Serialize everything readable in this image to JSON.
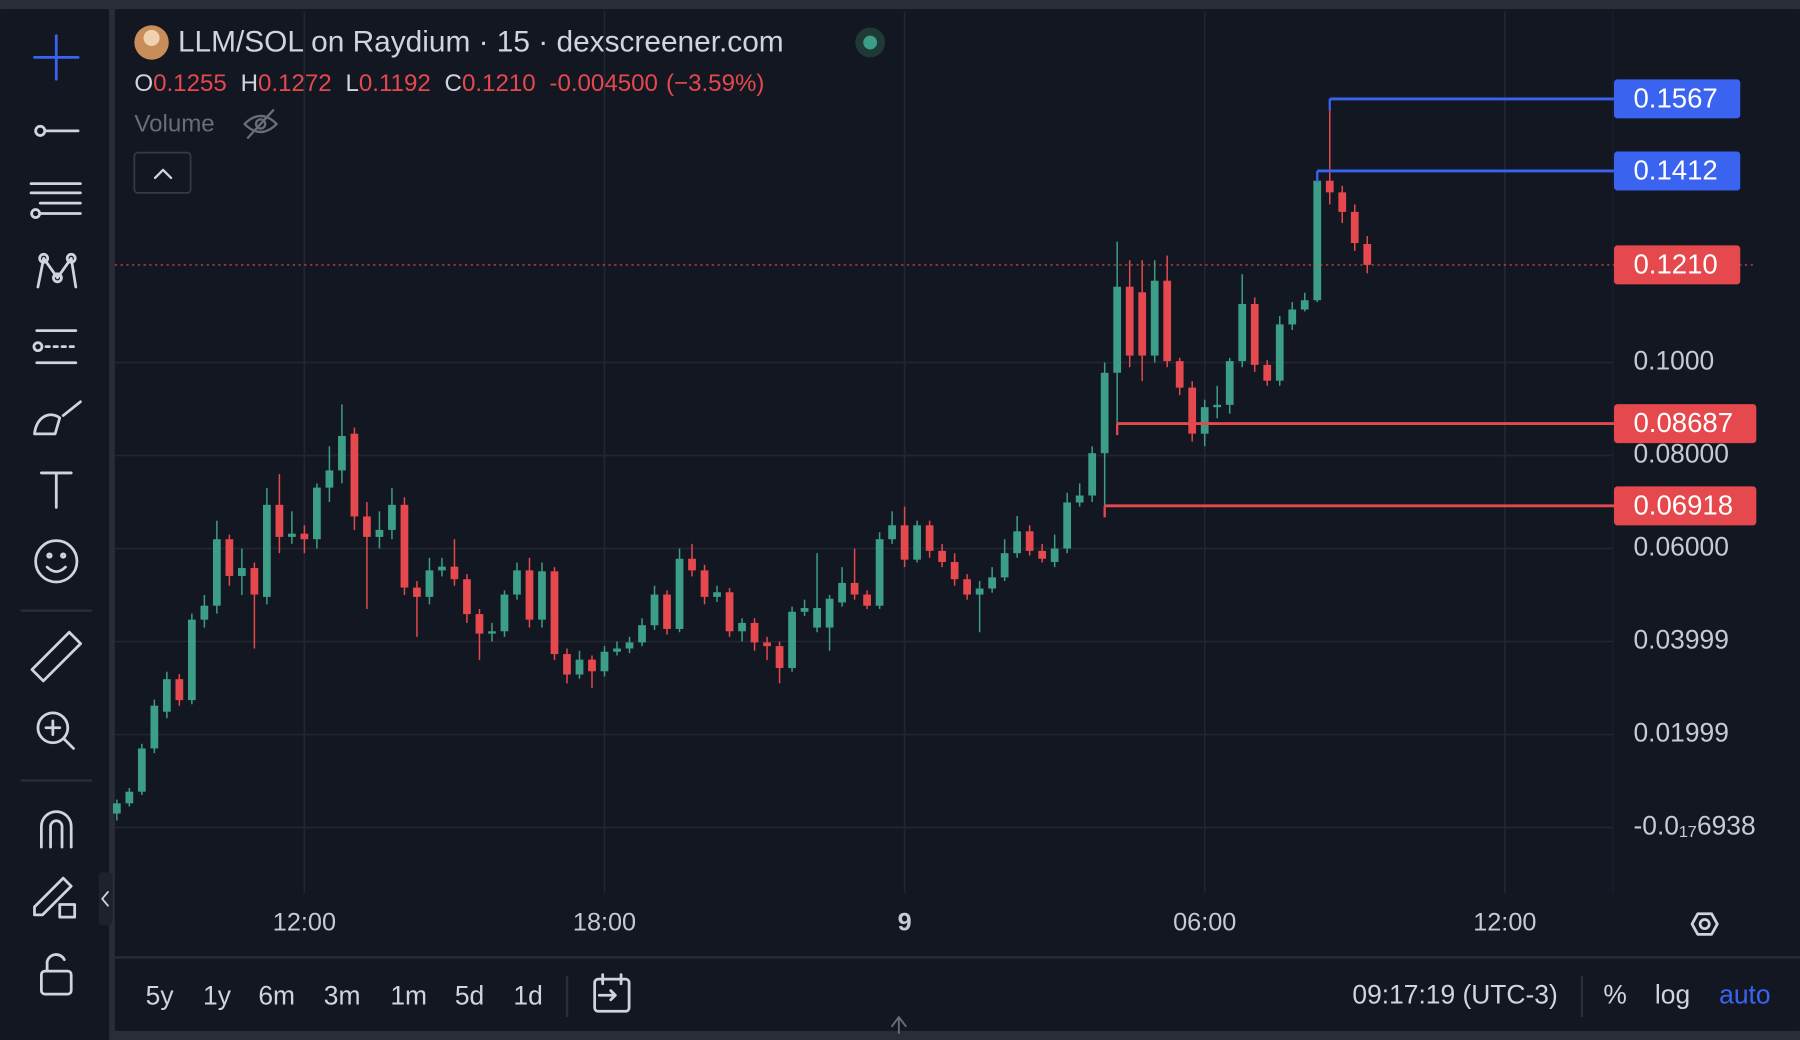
{
  "chart_data": {
    "type": "candlestick",
    "title": "LLM/SOL on Raydium · 15 · dexscreener.com",
    "ohlc_legend": [
      {
        "label": "O",
        "value": 0.1255
      },
      {
        "label": "H",
        "value": 0.1272
      },
      {
        "label": "L",
        "value": 0.1192
      },
      {
        "label": "C",
        "value": {
          "value": 0.121,
          "label": "0.1210"
        }
      }
    ],
    "change": {
      "value": -0.0045,
      "label": "-0.004500"
    },
    "change_percent": {
      "value": -3.59,
      "label": "(−3.59%)"
    },
    "volume_label": "Volume",
    "up_color": "#3c9e86",
    "down_color": "#e5484d",
    "x": [
      8.25,
      8.5,
      8.75,
      9,
      9.25,
      9.5,
      9.75,
      10,
      10.25,
      10.5,
      10.75,
      11,
      11.25,
      11.5,
      11.75,
      12,
      12.25,
      12.5,
      12.75,
      13,
      13.25,
      13.5,
      13.75,
      14,
      14.25,
      14.5,
      14.75,
      15,
      15.25,
      15.5,
      15.75,
      16,
      16.25,
      16.5,
      16.75,
      17,
      17.25,
      17.5,
      17.75,
      18,
      18.25,
      18.5,
      18.75,
      19,
      19.25,
      19.5,
      19.75,
      20,
      20.25,
      20.5,
      20.75,
      21,
      21.25,
      21.5,
      21.75,
      22,
      22.25,
      22.5,
      22.75,
      23,
      23.25,
      23.5,
      23.75,
      24,
      24.25,
      24.5,
      24.75,
      25,
      25.25,
      25.5,
      25.75,
      26,
      26.25,
      26.5,
      26.75,
      27,
      27.25,
      27.5,
      27.75,
      28,
      28.25,
      28.5,
      28.75,
      29,
      29.25,
      29.5,
      29.75,
      30,
      30.25,
      30.5,
      30.75,
      31,
      31.25,
      31.5,
      31.75,
      32,
      32.25,
      32.5,
      32.75,
      33,
      33.25
    ],
    "open": [
      0.003,
      0.0052,
      0.0077,
      0.017,
      0.0249,
      0.0319,
      0.0274,
      0.0447,
      0.0477,
      0.062,
      0.0541,
      0.0558,
      0.0496,
      0.0694,
      0.0625,
      0.0632,
      0.062,
      0.0731,
      0.0768,
      0.0847,
      0.0669,
      0.0625,
      0.064,
      0.0694,
      0.0516,
      0.0496,
      0.0553,
      0.0561,
      0.0534,
      0.0459,
      0.0417,
      0.0422,
      0.0501,
      0.0553,
      0.0447,
      0.0551,
      0.0373,
      0.0329,
      0.0361,
      0.0336,
      0.0378,
      0.0385,
      0.0398,
      0.0435,
      0.0501,
      0.0427,
      0.0578,
      0.0553,
      0.0496,
      0.0506,
      0.0422,
      0.044,
      0.0398,
      0.039,
      0.0343,
      0.0464,
      0.043,
      0.043,
      0.0484,
      0.0526,
      0.0501,
      0.0477,
      0.062,
      0.065,
      0.0576,
      0.065,
      0.0595,
      0.0571,
      0.0534,
      0.0501,
      0.0514,
      0.0538,
      0.059,
      0.0637,
      0.0595,
      0.0571,
      0.06,
      0.0699,
      0.0714,
      0.0805,
      0.0978,
      0.1163,
      0.1151,
      0.1015,
      0.1176,
      0.1003,
      0.0946,
      0.0847,
      0.0904,
      0.0909,
      0.1003,
      0.1126,
      0.0995,
      0.0961,
      0.1082,
      0.1114,
      0.1134,
      0.1391,
      0.1366,
      0.1324,
      0.1255
    ],
    "high": [
      0.006,
      0.0085,
      0.018,
      0.0275,
      0.0335,
      0.033,
      0.046,
      0.05,
      0.066,
      0.063,
      0.06,
      0.057,
      0.073,
      0.076,
      0.068,
      0.065,
      0.074,
      0.082,
      0.091,
      0.086,
      0.07,
      0.068,
      0.073,
      0.071,
      0.053,
      0.058,
      0.058,
      0.062,
      0.0545,
      0.047,
      0.044,
      0.051,
      0.057,
      0.058,
      0.057,
      0.056,
      0.0385,
      0.038,
      0.037,
      0.039,
      0.04,
      0.041,
      0.045,
      0.052,
      0.051,
      0.06,
      0.061,
      0.0565,
      0.052,
      0.0515,
      0.045,
      0.045,
      0.041,
      0.04,
      0.0475,
      0.049,
      0.059,
      0.05,
      0.056,
      0.06,
      0.051,
      0.0635,
      0.068,
      0.069,
      0.066,
      0.066,
      0.061,
      0.059,
      0.0545,
      0.053,
      0.056,
      0.062,
      0.067,
      0.065,
      0.061,
      0.063,
      0.072,
      0.074,
      0.082,
      0.1,
      0.126,
      0.122,
      0.122,
      0.122,
      0.123,
      0.101,
      0.096,
      0.092,
      0.095,
      0.101,
      0.119,
      0.114,
      0.1005,
      0.11,
      0.113,
      0.115,
      0.1412,
      0.1567,
      0.138,
      0.134,
      0.1272
    ],
    "low": [
      0.0015,
      0.0045,
      0.007,
      0.016,
      0.0235,
      0.0262,
      0.0265,
      0.043,
      0.046,
      0.052,
      0.05,
      0.0385,
      0.048,
      0.059,
      0.061,
      0.059,
      0.06,
      0.07,
      0.074,
      0.064,
      0.047,
      0.06,
      0.062,
      0.05,
      0.041,
      0.048,
      0.054,
      0.052,
      0.044,
      0.036,
      0.04,
      0.041,
      0.049,
      0.043,
      0.043,
      0.036,
      0.031,
      0.032,
      0.03,
      0.0325,
      0.037,
      0.0375,
      0.039,
      0.0425,
      0.0415,
      0.042,
      0.054,
      0.048,
      0.0485,
      0.041,
      0.04,
      0.038,
      0.036,
      0.031,
      0.0335,
      0.0455,
      0.042,
      0.038,
      0.0475,
      0.049,
      0.047,
      0.047,
      0.061,
      0.056,
      0.057,
      0.058,
      0.056,
      0.052,
      0.049,
      0.042,
      0.0505,
      0.053,
      0.058,
      0.0585,
      0.057,
      0.056,
      0.059,
      0.069,
      0.07,
      0.0692,
      0.0869,
      0.099,
      0.096,
      0.1,
      0.099,
      0.093,
      0.083,
      0.082,
      0.088,
      0.089,
      0.099,
      0.098,
      0.095,
      0.095,
      0.107,
      0.111,
      0.113,
      0.134,
      0.13,
      0.124,
      0.1192
    ],
    "close": [
      0.0052,
      0.0077,
      0.017,
      0.0262,
      0.0319,
      0.0274,
      0.0447,
      0.0477,
      0.062,
      0.0541,
      0.0558,
      0.0501,
      0.0694,
      0.0625,
      0.0632,
      0.062,
      0.0731,
      0.0768,
      0.0842,
      0.0669,
      0.0625,
      0.064,
      0.0694,
      0.0516,
      0.0496,
      0.0553,
      0.0561,
      0.0534,
      0.0459,
      0.0417,
      0.0422,
      0.0501,
      0.0553,
      0.0447,
      0.0551,
      0.0373,
      0.0329,
      0.0361,
      0.0336,
      0.0378,
      0.0385,
      0.0398,
      0.0435,
      0.0501,
      0.0427,
      0.0578,
      0.0553,
      0.0496,
      0.0506,
      0.0422,
      0.044,
      0.0398,
      0.039,
      0.0343,
      0.0464,
      0.0472,
      0.0472,
      0.0492,
      0.0526,
      0.0501,
      0.0477,
      0.062,
      0.065,
      0.0576,
      0.065,
      0.0595,
      0.0571,
      0.0534,
      0.0501,
      0.0514,
      0.0538,
      0.059,
      0.0637,
      0.0595,
      0.0578,
      0.06,
      0.0699,
      0.0714,
      0.0805,
      0.0978,
      0.1163,
      0.1015,
      0.1015,
      0.1176,
      0.1003,
      0.0946,
      0.0847,
      0.0904,
      0.0909,
      0.1003,
      0.1126,
      0.0995,
      0.0961,
      0.1082,
      0.1114,
      0.1134,
      0.1391,
      0.1366,
      0.1324,
      0.1257,
      0.121
    ],
    "xlim": [
      8.21,
      38.16
    ],
    "ylim": [
      -0.0141,
      0.1755
    ],
    "xticks": [
      {
        "value": 12,
        "label": "12:00"
      },
      {
        "value": 18,
        "label": "18:00"
      },
      {
        "value": 24,
        "label": "9"
      },
      {
        "value": 30,
        "label": "06:00"
      },
      {
        "value": 36,
        "label": "12:00"
      }
    ],
    "yticks": [
      {
        "value": 0.1,
        "label": "0.1000"
      },
      {
        "value": 0.08,
        "label": "0.08000"
      },
      {
        "value": 0.06,
        "label": "0.06000"
      },
      0.03999,
      0.01999,
      {
        "value": -6.938e-18,
        "label": "-0.0₁₇6938"
      }
    ],
    "grid": true,
    "current_price": {
      "value": 0.121,
      "label": "0.1210"
    },
    "price_lines": [
      {
        "x": 32.5,
        "value": 0.1567,
        "color": "#3a63f0"
      },
      {
        "x": 32.25,
        "value": 0.1412,
        "color": "#3a63f0"
      },
      {
        "x": 28.25,
        "value": 0.08687,
        "color": "#e5484d"
      },
      {
        "x": 28,
        "value": 0.06918,
        "color": "#e5484d"
      }
    ]
  },
  "toolbar": {
    "ranges": [
      "5y",
      "1y",
      "6m",
      "3m",
      "1m",
      "5d",
      "1d"
    ],
    "clock": "09:17:19 (UTC-3)",
    "percent": "%",
    "log": "log",
    "auto": "auto"
  }
}
